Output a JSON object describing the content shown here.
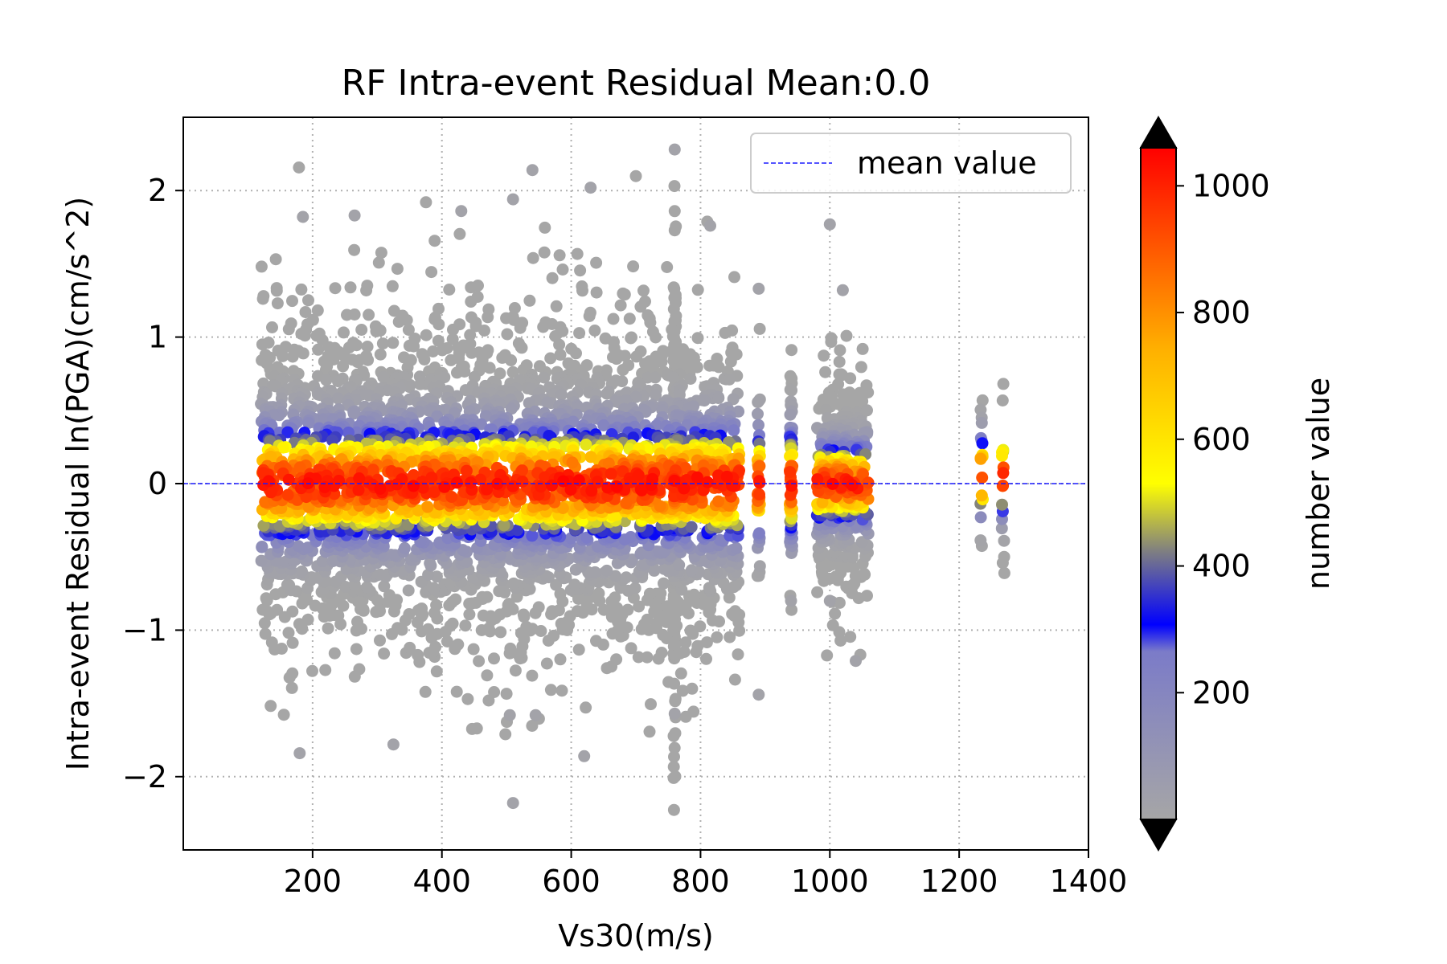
{
  "chart_data": {
    "type": "scatter",
    "title": "RF Intra-event Residual Mean:0.0",
    "xlabel": "Vs30(m/s)",
    "ylabel": "Intra-event Residual ln(PGA)(cm/s^2)",
    "xlim": [
      0,
      1400
    ],
    "ylim": [
      -2.5,
      2.5
    ],
    "xticks": [
      200,
      400,
      600,
      800,
      1000,
      1200,
      1400
    ],
    "xtick_labels": [
      "200",
      "400",
      "600",
      "800",
      "1000",
      "1200",
      "1400"
    ],
    "yticks": [
      -2,
      -1,
      0,
      1,
      2
    ],
    "ytick_labels": [
      "−2",
      "−1",
      "0",
      "1",
      "2"
    ],
    "grid": true,
    "grid_style": "dotted",
    "mean_line": {
      "y": 0.0,
      "label": "mean value",
      "color": "#1a1aff",
      "style": "dashed"
    },
    "legend_position": "top-right",
    "colorbar": {
      "label": "number value",
      "range": [
        0,
        1060
      ],
      "ticks": [
        200,
        400,
        600,
        800,
        1000
      ],
      "tick_labels": [
        "200",
        "400",
        "600",
        "800",
        "1000"
      ],
      "extend": "both",
      "colors": [
        "#a6a6a6",
        "#7b7bc8",
        "#0000ff",
        "#808080",
        "#ffff00",
        "#ffb000",
        "#ff0000"
      ],
      "color_positions": [
        0.0,
        0.25,
        0.29,
        0.4,
        0.5,
        0.7,
        1.0
      ]
    },
    "clusters": [
      {
        "x_range": [
          120,
          860
        ],
        "points": 3300,
        "density_center": 0.0,
        "density_spread": 0.22,
        "y_spread": 0.55
      },
      {
        "x": 760,
        "points": 200,
        "density_center": 0.0,
        "density_spread": 0.2,
        "y_spread": 0.8
      },
      {
        "x": 890,
        "points": 40,
        "density_center": 0.0,
        "density_spread": 0.2,
        "y_spread": 0.4
      },
      {
        "x": 940,
        "points": 70,
        "density_center": 0.0,
        "density_spread": 0.2,
        "y_spread": 0.4
      },
      {
        "x_range": [
          980,
          1060
        ],
        "points": 400,
        "density_center": 0.0,
        "density_spread": 0.15,
        "y_spread": 0.4
      },
      {
        "x": 1235,
        "points": 18,
        "density_center": 0.05,
        "density_spread": 0.15,
        "y_spread": 0.3
      },
      {
        "x": 1268,
        "points": 18,
        "density_center": 0.05,
        "density_spread": 0.15,
        "y_spread": 0.3
      }
    ],
    "outliers": [
      {
        "x": 760,
        "y": 2.28
      },
      {
        "x": 540,
        "y": 2.14
      },
      {
        "x": 630,
        "y": 2.02
      },
      {
        "x": 510,
        "y": 1.94
      },
      {
        "x": 430,
        "y": 1.86
      },
      {
        "x": 265,
        "y": 1.83
      },
      {
        "x": 185,
        "y": 1.82
      },
      {
        "x": 1000,
        "y": 1.77
      },
      {
        "x": 815,
        "y": 1.76
      },
      {
        "x": 890,
        "y": 1.33
      },
      {
        "x": 1020,
        "y": 1.32
      },
      {
        "x": 180,
        "y": -1.84
      },
      {
        "x": 325,
        "y": -1.78
      },
      {
        "x": 510,
        "y": -2.18
      },
      {
        "x": 620,
        "y": -1.86
      },
      {
        "x": 505,
        "y": -1.58
      },
      {
        "x": 545,
        "y": -1.58
      },
      {
        "x": 890,
        "y": -1.44
      },
      {
        "x": 760,
        "y": -1.57
      },
      {
        "x": 1040,
        "y": -1.21
      },
      {
        "x": 940,
        "y": -0.8
      },
      {
        "x": 1000,
        "y": -0.8
      }
    ]
  }
}
